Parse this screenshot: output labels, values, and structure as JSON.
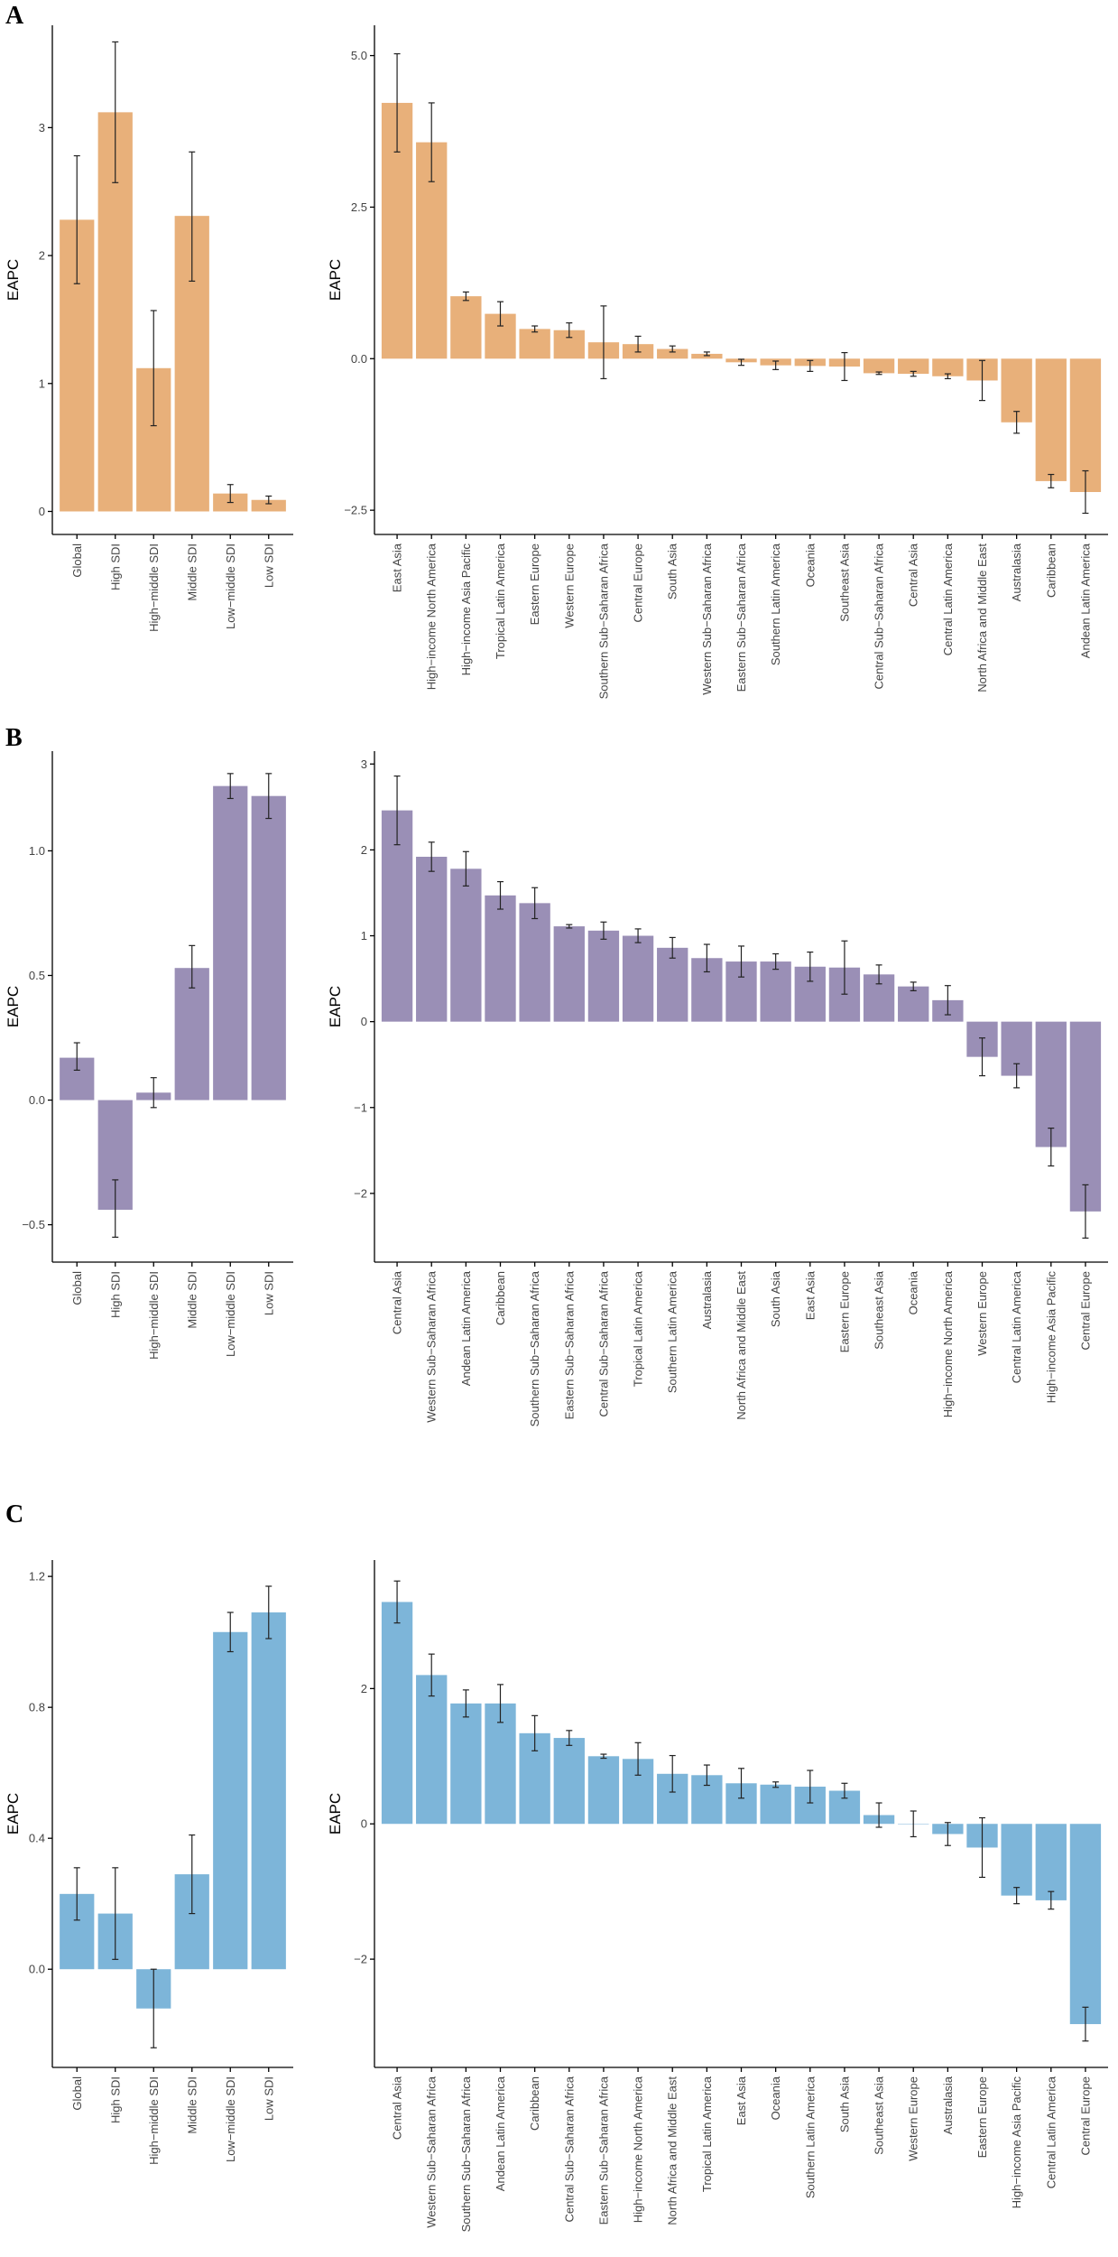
{
  "panel_labels": [
    "A",
    "B",
    "C"
  ],
  "chart_data": [
    {
      "id": "A-sdi",
      "panel": "A",
      "type": "bar",
      "color": "#E8B07A",
      "ylabel": "EAPC",
      "ylim": [
        -0.18,
        3.8
      ],
      "yticks": [
        0,
        1,
        2,
        3
      ],
      "tick_labels": [
        "0",
        "1",
        "2",
        "3"
      ],
      "categories": [
        "Global",
        "High SDI",
        "High−middle SDI",
        "Middle SDI",
        "Low−middle SDI",
        "Low SDI"
      ],
      "values": [
        2.28,
        3.12,
        1.12,
        2.31,
        0.14,
        0.09
      ],
      "lower": [
        1.78,
        2.57,
        0.67,
        1.8,
        0.07,
        0.06
      ],
      "upper": [
        2.78,
        3.67,
        1.57,
        2.81,
        0.21,
        0.12
      ]
    },
    {
      "id": "A-region",
      "panel": "A",
      "type": "bar",
      "color": "#E8B07A",
      "ylabel": "EAPC",
      "ylim": [
        -2.9,
        5.5
      ],
      "yticks": [
        -2.5,
        0,
        2.5,
        5
      ],
      "tick_labels": [
        "−2.5",
        "0.0",
        "2.5",
        "5.0"
      ],
      "categories": [
        "East Asia",
        "High−income North America",
        "High−income Asia Pacific",
        "Tropical Latin America",
        "Eastern Europe",
        "Western Europe",
        "Southern Sub−Saharan Africa",
        "Central Europe",
        "South Asia",
        "Western Sub−Saharan Africa",
        "Eastern Sub−Saharan Africa",
        "Southern Latin America",
        "Oceania",
        "Southeast Asia",
        "Central Sub−Saharan Africa",
        "Central Asia",
        "Central Latin America",
        "North Africa and Middle East",
        "Australasia",
        "Caribbean",
        "Andean Latin America"
      ],
      "values": [
        4.22,
        3.57,
        1.03,
        0.74,
        0.49,
        0.47,
        0.27,
        0.24,
        0.16,
        0.08,
        -0.06,
        -0.11,
        -0.12,
        -0.13,
        -0.24,
        -0.25,
        -0.29,
        -0.36,
        -1.05,
        -2.02,
        -2.2
      ],
      "lower": [
        3.41,
        2.92,
        0.96,
        0.54,
        0.44,
        0.35,
        -0.33,
        0.11,
        0.11,
        0.05,
        -0.11,
        -0.18,
        -0.21,
        -0.36,
        -0.26,
        -0.29,
        -0.33,
        -0.69,
        -1.23,
        -2.13,
        -2.55
      ],
      "upper": [
        5.03,
        4.22,
        1.1,
        0.94,
        0.54,
        0.59,
        0.87,
        0.37,
        0.21,
        0.11,
        -0.01,
        -0.04,
        -0.03,
        0.1,
        -0.22,
        -0.21,
        -0.25,
        -0.03,
        -0.87,
        -1.91,
        -1.85
      ]
    },
    {
      "id": "B-sdi",
      "panel": "B",
      "type": "bar",
      "color": "#9A8FB6",
      "ylabel": "EAPC",
      "ylim": [
        -0.65,
        1.4
      ],
      "yticks": [
        -0.5,
        0,
        0.5,
        1
      ],
      "tick_labels": [
        "−0.5",
        "0.0",
        "0.5",
        "1.0"
      ],
      "categories": [
        "Global",
        "High SDI",
        "High−middle SDI",
        "Middle SDI",
        "Low−middle SDI",
        "Low SDI"
      ],
      "values": [
        0.17,
        -0.44,
        0.03,
        0.53,
        1.26,
        1.22
      ],
      "lower": [
        0.12,
        -0.55,
        -0.03,
        0.45,
        1.21,
        1.13
      ],
      "upper": [
        0.23,
        -0.32,
        0.09,
        0.62,
        1.31,
        1.31
      ]
    },
    {
      "id": "B-region",
      "panel": "B",
      "type": "bar",
      "color": "#9A8FB6",
      "ylabel": "EAPC",
      "ylim": [
        -2.8,
        3.15
      ],
      "yticks": [
        -2,
        -1,
        0,
        1,
        2,
        3
      ],
      "tick_labels": [
        "−2",
        "−1",
        "0",
        "1",
        "2",
        "3"
      ],
      "categories": [
        "Central Asia",
        "Western Sub−Saharan Africa",
        "Andean Latin America",
        "Caribbean",
        "Southern Sub−Saharan Africa",
        "Eastern Sub−Saharan Africa",
        "Central Sub−Saharan Africa",
        "Tropical Latin America",
        "Southern Latin America",
        "Australasia",
        "North Africa and Middle East",
        "South Asia",
        "East Asia",
        "Eastern Europe",
        "Southeast Asia",
        "Oceania",
        "High−income North America",
        "Western Europe",
        "Central Latin America",
        "High−income Asia Pacific",
        "Central Europe"
      ],
      "values": [
        2.46,
        1.92,
        1.78,
        1.47,
        1.38,
        1.11,
        1.06,
        1.0,
        0.86,
        0.74,
        0.7,
        0.7,
        0.64,
        0.63,
        0.55,
        0.41,
        0.25,
        -0.41,
        -0.63,
        -1.46,
        -2.21
      ],
      "lower": [
        2.06,
        1.75,
        1.58,
        1.31,
        1.2,
        1.09,
        0.96,
        0.92,
        0.74,
        0.58,
        0.52,
        0.61,
        0.47,
        0.32,
        0.44,
        0.36,
        0.08,
        -0.63,
        -0.77,
        -1.68,
        -2.52
      ],
      "upper": [
        2.86,
        2.09,
        1.98,
        1.63,
        1.56,
        1.13,
        1.16,
        1.08,
        0.98,
        0.9,
        0.88,
        0.79,
        0.81,
        0.94,
        0.66,
        0.46,
        0.42,
        -0.19,
        -0.49,
        -1.24,
        -1.9
      ]
    },
    {
      "id": "C-sdi",
      "panel": "C",
      "type": "bar",
      "color": "#7DB5D9",
      "ylabel": "EAPC",
      "ylim": [
        -0.3,
        1.25
      ],
      "yticks": [
        0,
        0.4,
        0.8,
        1.2
      ],
      "tick_labels": [
        "0.0",
        "0.4",
        "0.8",
        "1.2"
      ],
      "categories": [
        "Global",
        "High SDI",
        "High−middle SDI",
        "Middle SDI",
        "Low−middle SDI",
        "Low SDI"
      ],
      "values": [
        0.23,
        0.17,
        -0.12,
        0.29,
        1.03,
        1.09
      ],
      "lower": [
        0.15,
        0.03,
        -0.24,
        0.17,
        0.97,
        1.01
      ],
      "upper": [
        0.31,
        0.31,
        0.0,
        0.41,
        1.09,
        1.17
      ]
    },
    {
      "id": "C-region",
      "panel": "C",
      "type": "bar",
      "color": "#7DB5D9",
      "ylabel": "EAPC",
      "ylim": [
        -3.6,
        3.9
      ],
      "yticks": [
        -2,
        0,
        2
      ],
      "tick_labels": [
        "−2",
        "0",
        "2"
      ],
      "categories": [
        "Central Asia",
        "Western Sub−Saharan Africa",
        "Southern Sub−Saharan Africa",
        "Andean Latin America",
        "Caribbean",
        "Central Sub−Saharan Africa",
        "Eastern Sub−Saharan Africa",
        "High−income North America",
        "North Africa and Middle East",
        "Tropical Latin America",
        "East Asia",
        "Oceania",
        "Southern Latin America",
        "South Asia",
        "Southeast Asia",
        "Western Europe",
        "Australasia",
        "Eastern Europe",
        "High−income Asia Pacific",
        "Central Latin America",
        "Central Europe"
      ],
      "values": [
        3.28,
        2.2,
        1.78,
        1.78,
        1.34,
        1.27,
        1.0,
        0.96,
        0.74,
        0.72,
        0.6,
        0.58,
        0.55,
        0.49,
        0.13,
        0.0,
        -0.15,
        -0.35,
        -1.06,
        -1.13,
        -2.96
      ],
      "lower": [
        2.97,
        1.89,
        1.58,
        1.5,
        1.08,
        1.16,
        0.97,
        0.72,
        0.47,
        0.57,
        0.38,
        0.54,
        0.31,
        0.38,
        -0.05,
        -0.19,
        -0.32,
        -0.79,
        -1.18,
        -1.26,
        -3.21
      ],
      "upper": [
        3.59,
        2.51,
        1.98,
        2.06,
        1.6,
        1.38,
        1.03,
        1.2,
        1.01,
        0.87,
        0.82,
        0.62,
        0.79,
        0.6,
        0.31,
        0.19,
        0.02,
        0.09,
        -0.94,
        -1.0,
        -2.71
      ]
    }
  ]
}
